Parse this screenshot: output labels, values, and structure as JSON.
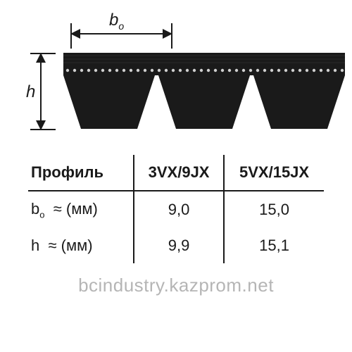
{
  "dimensions": {
    "width_label_html": "b<sub>o</sub>",
    "height_label": "h"
  },
  "belt_profile": {
    "type": "diagram",
    "rib_count": 3,
    "outer_color": "#1a1a1a",
    "texture_dot_color": "#cfcfcf",
    "band_top_color": "#2a2a2a",
    "background": "#ffffff"
  },
  "table": {
    "columns": [
      {
        "key": "label",
        "header": "Профиль"
      },
      {
        "key": "c1",
        "header": "3VX/9JX"
      },
      {
        "key": "c2",
        "header": "5VX/15JX"
      }
    ],
    "rows": [
      {
        "label_html": "b<span class=\"sub\">o</span> &nbsp;≈ (мм)",
        "c1": "9,0",
        "c2": "15,0"
      },
      {
        "label_html": "h &nbsp;≈ (мм)",
        "c1": "9,9",
        "c2": "15,1"
      }
    ],
    "header_fontweight": "bold",
    "border_color": "#1a1a1a",
    "font_size": 22
  },
  "watermark": "bcindustry.kazprom.net"
}
